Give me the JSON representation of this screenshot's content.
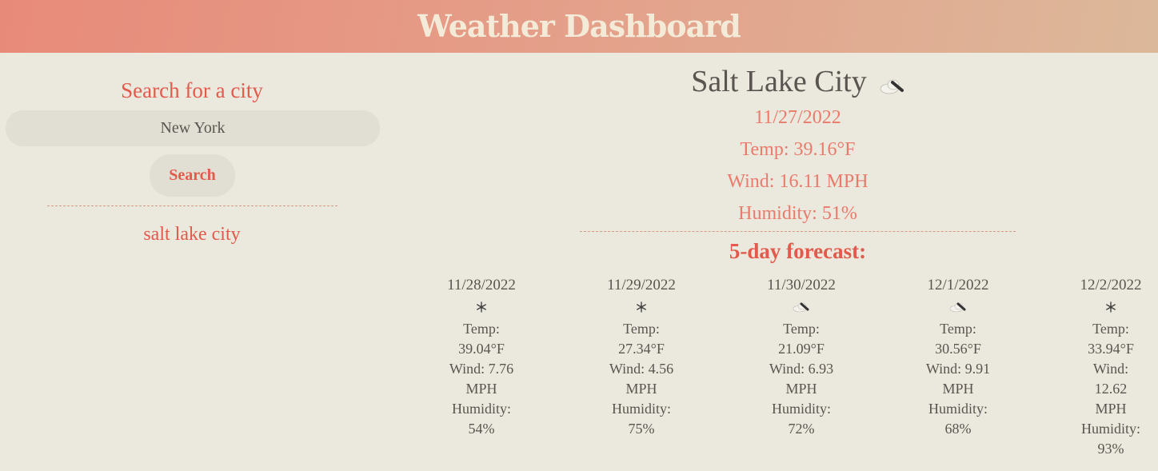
{
  "header": {
    "title": "Weather Dashboard"
  },
  "search": {
    "title": "Search for a city",
    "input_value": "New York",
    "button_label": "Search",
    "history": [
      "salt lake city"
    ]
  },
  "current": {
    "city": "Salt Lake City",
    "icon": "partly-cloudy-icon",
    "date": "11/27/2022",
    "temp": "Temp: 39.16°F",
    "wind": "Wind: 16.11 MPH",
    "humidity": "Humidity: 51%"
  },
  "forecast": {
    "title": "5-day forecast:",
    "days": [
      {
        "date": "11/28/2022",
        "icon": "snowflake-icon",
        "l1": "Temp:",
        "l2": "39.04°F",
        "l3": "Wind: 7.76",
        "l4": "MPH",
        "l5": "Humidity:",
        "l6": "54%"
      },
      {
        "date": "11/29/2022",
        "icon": "snowflake-icon",
        "l1": "Temp:",
        "l2": "27.34°F",
        "l3": "Wind: 4.56",
        "l4": "MPH",
        "l5": "Humidity:",
        "l6": "75%"
      },
      {
        "date": "11/30/2022",
        "icon": "partly-cloudy-icon",
        "l1": "Temp:",
        "l2": "21.09°F",
        "l3": "Wind: 6.93",
        "l4": "MPH",
        "l5": "Humidity:",
        "l6": "72%"
      },
      {
        "date": "12/1/2022",
        "icon": "partly-cloudy-icon",
        "l1": "Temp:",
        "l2": "30.56°F",
        "l3": "Wind: 9.91",
        "l4": "MPH",
        "l5": "Humidity:",
        "l6": "68%"
      },
      {
        "date": "12/2/2022",
        "icon": "snowflake-icon",
        "l1": "Temp:",
        "l2": "33.94°F",
        "l3": "Wind:",
        "l4": "12.62",
        "l5": "MPH",
        "l6": "Humidity:",
        "l7": "93%"
      }
    ]
  },
  "colors": {
    "accent": "#e25a4c",
    "accent_light": "#e87b6c",
    "background": "#ebe8dd"
  }
}
